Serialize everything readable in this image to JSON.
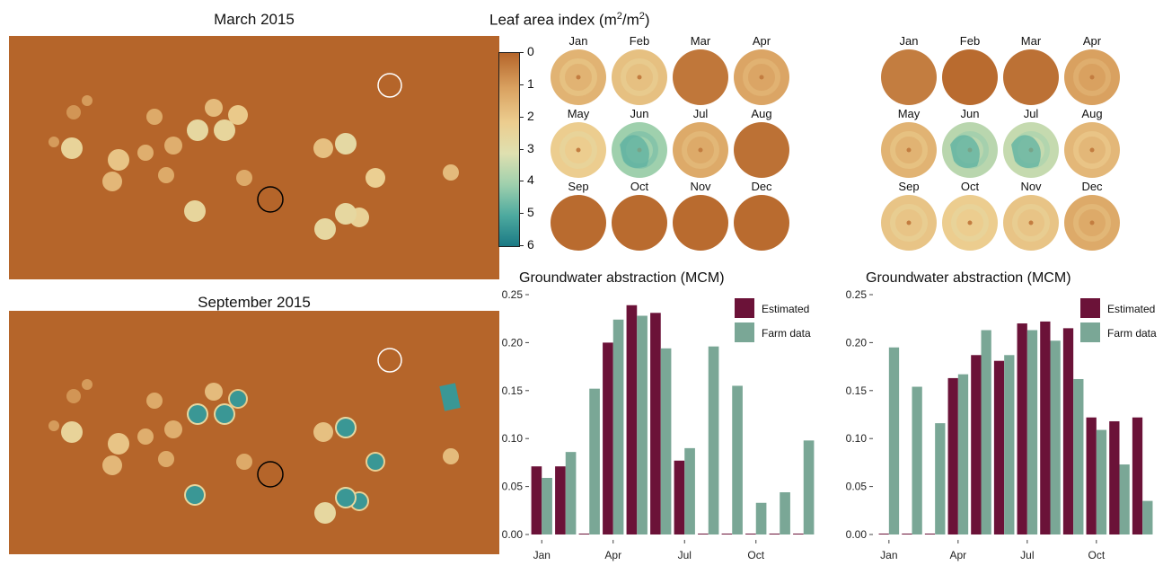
{
  "maps": {
    "march_title": "March 2015",
    "september_title": "September 2015"
  },
  "lai": {
    "title_main": "Leaf area index (m",
    "sup1": "2",
    "title_mid": "/m",
    "sup2": "2",
    "title_end": ")",
    "colorbar_labels": [
      "0",
      "1",
      "2",
      "3",
      "4",
      "5",
      "6"
    ],
    "months": [
      "Jan",
      "Feb",
      "Mar",
      "Apr",
      "May",
      "Jun",
      "Jul",
      "Aug",
      "Sep",
      "Oct",
      "Nov",
      "Dec"
    ],
    "field1_levels": [
      1.4,
      1.7,
      0.3,
      1.1,
      2.0,
      4.0,
      1.2,
      0.2,
      0.1,
      0.1,
      0.1,
      0.1
    ],
    "field2_levels": [
      0.4,
      0.1,
      0.2,
      1.0,
      1.4,
      3.6,
      3.4,
      1.5,
      1.8,
      2.0,
      1.8,
      1.2
    ]
  },
  "colors": {
    "estimated": "#6b1238",
    "farm_data": "#7aa796",
    "map_background": "#b5652a"
  },
  "chart_data": [
    {
      "type": "bar",
      "title": "Groundwater abstraction (MCM)",
      "categories": [
        "Jan",
        "Feb",
        "Mar",
        "Apr",
        "May",
        "Jun",
        "Jul",
        "Aug",
        "Sep",
        "Oct",
        "Nov",
        "Dec"
      ],
      "x_tick_labels": [
        "Jan",
        "Apr",
        "Jul",
        "Oct"
      ],
      "y_tick_labels": [
        "0.00",
        "0.05",
        "0.10",
        "0.15",
        "0.20",
        "0.25"
      ],
      "ylim": [
        0,
        0.25
      ],
      "legend_position": "top-right",
      "series": [
        {
          "name": "Estimated",
          "values": [
            0.071,
            0.071,
            0.0,
            0.2,
            0.239,
            0.231,
            0.077,
            0.0,
            0.0,
            0.0,
            0.0,
            0.0
          ]
        },
        {
          "name": "Farm data",
          "values": [
            0.059,
            0.086,
            0.152,
            0.224,
            0.228,
            0.194,
            0.09,
            0.196,
            0.155,
            0.033,
            0.044,
            0.098
          ]
        }
      ]
    },
    {
      "type": "bar",
      "title": "Groundwater abstraction (MCM)",
      "categories": [
        "Jan",
        "Feb",
        "Mar",
        "Apr",
        "May",
        "Jun",
        "Jul",
        "Aug",
        "Sep",
        "Oct",
        "Nov",
        "Dec"
      ],
      "x_tick_labels": [
        "Jan",
        "Apr",
        "Jul",
        "Oct"
      ],
      "y_tick_labels": [
        "0.00",
        "0.05",
        "0.10",
        "0.15",
        "0.20",
        "0.25"
      ],
      "ylim": [
        0,
        0.25
      ],
      "legend_position": "top-right",
      "series": [
        {
          "name": "Estimated",
          "values": [
            0.0,
            0.0,
            0.0,
            0.163,
            0.187,
            0.181,
            0.22,
            0.222,
            0.215,
            0.122,
            0.118,
            0.122
          ]
        },
        {
          "name": "Farm data",
          "values": [
            0.195,
            0.154,
            0.116,
            0.167,
            0.213,
            0.187,
            0.213,
            0.202,
            0.162,
            0.109,
            0.073,
            0.035
          ]
        }
      ]
    }
  ]
}
